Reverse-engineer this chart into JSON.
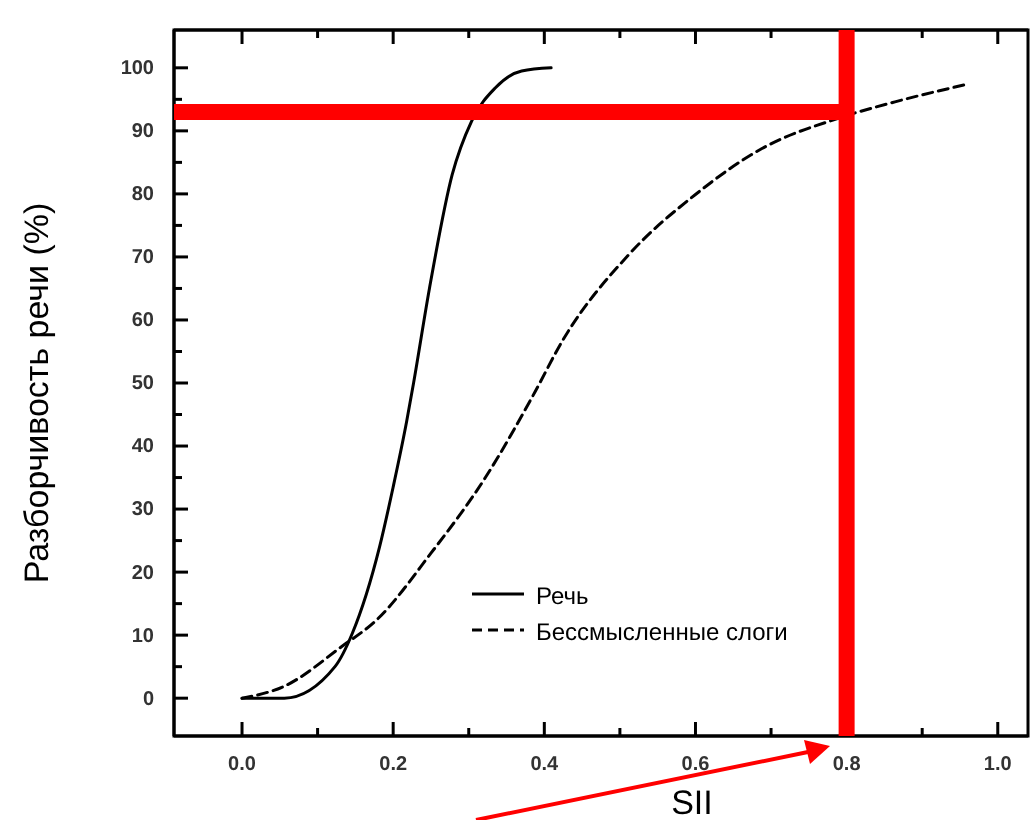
{
  "chart_data": {
    "type": "line",
    "xlabel": "SII",
    "ylabel": "Разборчивость речи (%)",
    "xlim": [
      -0.09,
      1.04
    ],
    "ylim": [
      -6,
      106
    ],
    "xticks": [
      {
        "value": 0,
        "label": "0.0"
      },
      {
        "value": 0.1,
        "label": null
      },
      {
        "value": 0.2,
        "label": "0.2"
      },
      {
        "value": 0.3,
        "label": null
      },
      {
        "value": 0.4,
        "label": "0.4"
      },
      {
        "value": 0.5,
        "label": null
      },
      {
        "value": 0.6,
        "label": "0.6"
      },
      {
        "value": 0.7,
        "label": null
      },
      {
        "value": 0.8,
        "label": "0.8"
      },
      {
        "value": 0.9,
        "label": null
      },
      {
        "value": 1.0,
        "label": "1.0"
      }
    ],
    "yticks": [
      0,
      {
        "value": 5,
        "label": null
      },
      10,
      {
        "value": 15,
        "label": null
      },
      20,
      {
        "value": 25,
        "label": null
      },
      30,
      {
        "value": 35,
        "label": null
      },
      40,
      {
        "value": 45,
        "label": null
      },
      50,
      {
        "value": 55,
        "label": null
      },
      60,
      {
        "value": 65,
        "label": null
      },
      70,
      {
        "value": 75,
        "label": null
      },
      80,
      {
        "value": 85,
        "label": null
      },
      90,
      {
        "value": 95,
        "label": null
      },
      100
    ],
    "grid": false,
    "legend": "bottom right",
    "marker": "none",
    "series": [
      {
        "name": "Речь",
        "color": "#000000",
        "line_style": "solid",
        "x": [
          0,
          0.056,
          0.123,
          0.146,
          0.182,
          0.2,
          0.218,
          0.227,
          0.248,
          0.278,
          0.304,
          0.335,
          0.37,
          0.409
        ],
        "values": [
          0,
          0,
          5,
          10.3,
          24,
          33.5,
          44,
          50,
          65,
          83,
          91.6,
          96.8,
          99.5,
          100
        ]
      },
      {
        "name": "Бессмысленные слоги",
        "color": "#000000",
        "line_style": "dashed",
        "x": [
          0,
          0.056,
          0.132,
          0.178,
          0.25,
          0.322,
          0.385,
          0.424,
          0.512,
          0.6,
          0.688,
          0.789,
          0.864,
          0.956
        ],
        "values": [
          0,
          1.9,
          8.2,
          12.4,
          23,
          35,
          48,
          56.7,
          70.4,
          79.9,
          87.2,
          92,
          94.6,
          97.3
        ]
      }
    ],
    "ref_lines": [
      {
        "axis": "y",
        "value": 93,
        "color": "#ff0000"
      },
      {
        "axis": "x",
        "value": 0.8,
        "color": "#ff0000"
      }
    ]
  }
}
